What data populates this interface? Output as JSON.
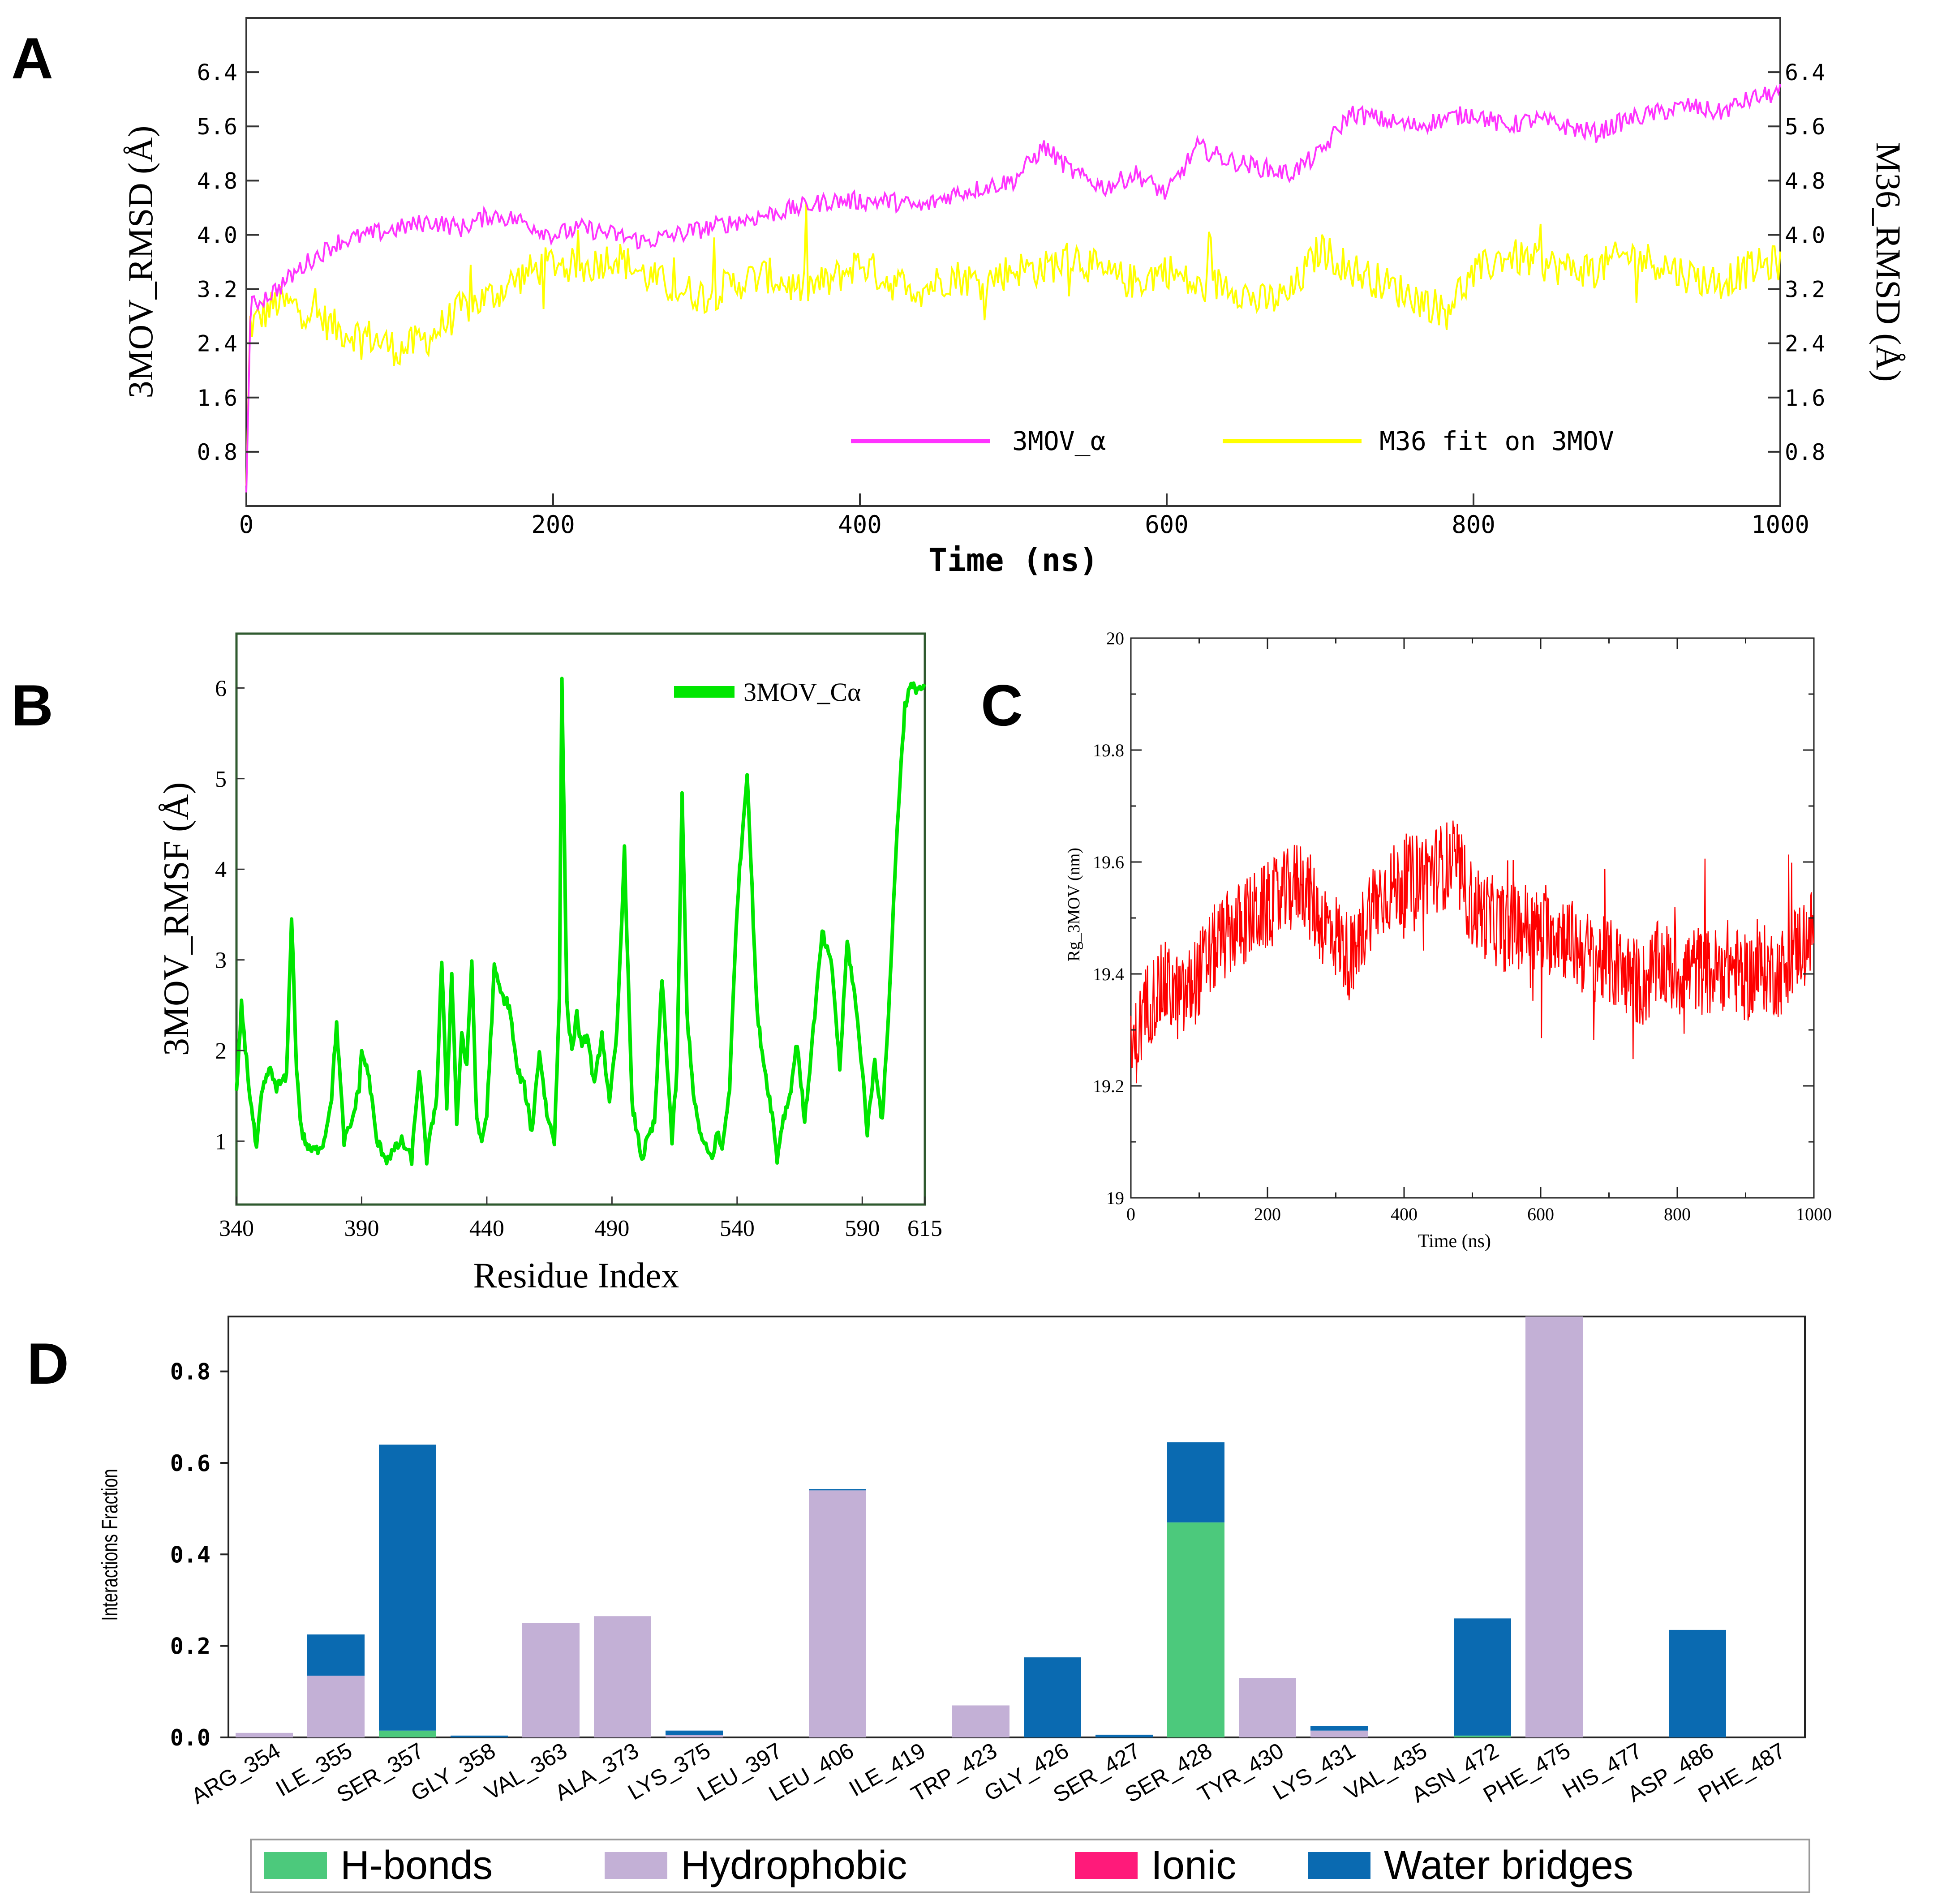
{
  "panels": {
    "a": {
      "letter": "A"
    },
    "b": {
      "letter": "B"
    },
    "c": {
      "letter": "C"
    },
    "d": {
      "letter": "D"
    }
  },
  "colors": {
    "magenta": "#ff33ff",
    "yellow": "#ffff00",
    "green": "#00e600",
    "red": "#ff0000",
    "hbond": "#4cc97c",
    "hydrophobic": "#c3b0d6",
    "ionic": "#ff1a7a",
    "water": "#0a6ab1"
  },
  "chart_data": [
    {
      "type": "line",
      "title": "",
      "xlabel": "Time (ns)",
      "ylabel": "3MOV_RMSD (Å)",
      "ylabel_right": "M36_RMSD (Å)",
      "xlim": [
        0,
        1000
      ],
      "ylim": [
        0,
        7.2
      ],
      "xticks": [
        "0",
        "200",
        "400",
        "600",
        "800",
        "1000"
      ],
      "yticks": [
        "0.8",
        "1.6",
        "2.4",
        "3.2",
        "4.0",
        "4.8",
        "5.6",
        "6.4"
      ],
      "legend": [
        "3MOV_α",
        "M36 fit on 3MOV"
      ],
      "legend_position": "bottom-right",
      "series": [
        {
          "name": "3MOV_α",
          "x": [
            0,
            20,
            40,
            60,
            80,
            100,
            120,
            140,
            160,
            180,
            200,
            220,
            240,
            260,
            280,
            300,
            320,
            340,
            360,
            380,
            400,
            420,
            440,
            460,
            480,
            500,
            520,
            540,
            560,
            580,
            600,
            620,
            640,
            660,
            680,
            700,
            720,
            740,
            760,
            780,
            800,
            820,
            840,
            860,
            880,
            900,
            920,
            940,
            960,
            980,
            1000
          ],
          "values": [
            2.9,
            3.2,
            3.6,
            3.9,
            4.0,
            4.1,
            4.2,
            4.1,
            4.3,
            4.2,
            4.0,
            4.1,
            4.0,
            3.9,
            4.0,
            4.1,
            4.2,
            4.3,
            4.4,
            4.5,
            4.5,
            4.5,
            4.4,
            4.6,
            4.7,
            4.8,
            5.3,
            4.9,
            4.7,
            4.9,
            4.6,
            5.3,
            5.1,
            5.0,
            4.9,
            5.2,
            5.8,
            5.7,
            5.6,
            5.7,
            5.8,
            5.6,
            5.7,
            5.6,
            5.5,
            5.7,
            5.8,
            5.9,
            5.8,
            6.0,
            6.1
          ]
        },
        {
          "name": "M36 fit on 3MOV",
          "x": [
            0,
            20,
            40,
            60,
            80,
            100,
            120,
            140,
            160,
            180,
            200,
            220,
            240,
            260,
            280,
            300,
            320,
            340,
            360,
            380,
            400,
            420,
            440,
            460,
            480,
            500,
            520,
            540,
            560,
            580,
            600,
            620,
            640,
            660,
            680,
            700,
            720,
            740,
            760,
            780,
            800,
            820,
            840,
            860,
            880,
            900,
            920,
            940,
            960,
            980,
            1000
          ],
          "values": [
            2.6,
            3.0,
            2.9,
            2.6,
            2.5,
            2.3,
            2.5,
            2.9,
            3.1,
            3.4,
            3.6,
            3.5,
            3.7,
            3.4,
            3.2,
            3.1,
            3.3,
            3.4,
            3.2,
            3.3,
            3.6,
            3.3,
            3.2,
            3.4,
            3.3,
            3.5,
            3.5,
            3.7,
            3.4,
            3.3,
            3.5,
            3.2,
            3.3,
            3.0,
            3.1,
            3.8,
            3.5,
            3.3,
            3.1,
            2.9,
            3.4,
            3.7,
            3.6,
            3.5,
            3.5,
            3.7,
            3.6,
            3.4,
            3.3,
            3.5,
            3.6
          ]
        }
      ]
    },
    {
      "type": "line",
      "title": "",
      "xlabel": "Residue Index",
      "ylabel": "3MOV_RMSF (Å)",
      "xlim": [
        340,
        615
      ],
      "ylim": [
        0.3,
        6.6
      ],
      "xticks": [
        "340",
        "390",
        "440",
        "490",
        "540",
        "590",
        "615"
      ],
      "yticks": [
        "1",
        "2",
        "3",
        "4",
        "5",
        "6"
      ],
      "legend": [
        "3MOV_Cα"
      ],
      "legend_position": "top-right",
      "series": [
        {
          "name": "3MOV_Cα",
          "x": [
            340,
            342,
            345,
            348,
            350,
            353,
            356,
            360,
            362,
            364,
            366,
            369,
            372,
            375,
            378,
            380,
            383,
            386,
            389,
            390,
            393,
            396,
            400,
            403,
            406,
            410,
            413,
            416,
            420,
            422,
            424,
            426,
            428,
            430,
            432,
            434,
            436,
            438,
            440,
            443,
            446,
            449,
            452,
            455,
            458,
            461,
            464,
            467,
            469,
            470,
            472,
            474,
            476,
            478,
            480,
            483,
            486,
            489,
            492,
            495,
            498,
            500,
            502,
            504,
            507,
            510,
            514,
            516,
            518,
            520,
            523,
            526,
            528,
            530,
            532,
            534,
            537,
            540,
            544,
            548,
            551,
            554,
            556,
            558,
            561,
            564,
            567,
            570,
            574,
            578,
            581,
            584,
            587,
            590,
            592,
            595,
            598,
            601,
            604,
            607,
            609,
            611,
            613,
            615
          ],
          "values": [
            1.5,
            2.5,
            1.6,
            0.9,
            1.5,
            1.8,
            1.6,
            1.7,
            3.5,
            1.8,
            1.1,
            0.9,
            0.9,
            1.0,
            1.5,
            2.3,
            1.0,
            1.2,
            1.6,
            2.0,
            1.7,
            1.0,
            0.8,
            0.9,
            1.0,
            0.8,
            1.8,
            0.8,
            1.5,
            3.0,
            1.4,
            2.9,
            1.2,
            2.2,
            1.8,
            3.0,
            1.2,
            1.0,
            1.3,
            2.9,
            2.6,
            2.5,
            1.8,
            1.6,
            1.1,
            2.0,
            1.3,
            1.0,
            2.6,
            6.1,
            2.5,
            2.0,
            2.4,
            2.0,
            2.2,
            1.6,
            2.2,
            1.4,
            2.2,
            4.2,
            1.4,
            1.1,
            0.8,
            1.0,
            1.2,
            2.8,
            1.0,
            1.8,
            4.8,
            2.4,
            1.4,
            1.0,
            0.9,
            0.8,
            1.1,
            0.9,
            1.6,
            3.6,
            5.1,
            2.4,
            1.8,
            1.3,
            0.8,
            1.2,
            1.5,
            2.1,
            1.2,
            2.1,
            3.3,
            2.9,
            1.8,
            3.2,
            2.6,
            1.8,
            1.1,
            1.9,
            1.2,
            2.7,
            4.5,
            5.8,
            6.0,
            6.0,
            6.0,
            6.0
          ]
        }
      ]
    },
    {
      "type": "line",
      "title": "",
      "xlabel": "Time (ns)",
      "ylabel": "Rg_3MOV (nm)",
      "xlim": [
        0,
        1000
      ],
      "ylim": [
        19,
        20
      ],
      "xticks": [
        "0",
        "200",
        "400",
        "600",
        "800",
        "1000"
      ],
      "yticks": [
        "19",
        "19.2",
        "19.4",
        "19.6",
        "19.8",
        "20"
      ],
      "series": [
        {
          "name": "Rg_3MOV",
          "x": [
            0,
            25,
            50,
            75,
            100,
            125,
            150,
            175,
            200,
            225,
            250,
            275,
            300,
            325,
            350,
            375,
            400,
            425,
            450,
            475,
            500,
            525,
            550,
            575,
            600,
            625,
            650,
            675,
            700,
            725,
            750,
            775,
            800,
            825,
            850,
            875,
            900,
            925,
            950,
            975,
            1000
          ],
          "values": [
            19.25,
            19.35,
            19.38,
            19.35,
            19.4,
            19.45,
            19.48,
            19.5,
            19.52,
            19.54,
            19.57,
            19.5,
            19.47,
            19.42,
            19.52,
            19.55,
            19.56,
            19.58,
            19.59,
            19.6,
            19.52,
            19.5,
            19.48,
            19.49,
            19.47,
            19.48,
            19.45,
            19.43,
            19.42,
            19.4,
            19.38,
            19.42,
            19.4,
            19.41,
            19.4,
            19.42,
            19.39,
            19.41,
            19.4,
            19.45,
            19.48
          ]
        }
      ]
    },
    {
      "type": "bar",
      "title": "",
      "xlabel": "",
      "ylabel": "Interactions Fraction",
      "ylim": [
        0,
        0.92
      ],
      "yticks": [
        "0.0",
        "0.2",
        "0.4",
        "0.6",
        "0.8"
      ],
      "categories": [
        "ARG_354",
        "ILE_355",
        "SER_357",
        "GLY_358",
        "VAL_363",
        "ALA_373",
        "LYS_375",
        "LEU_397",
        "LEU_406",
        "ILE_419",
        "TRP_423",
        "GLY_426",
        "SER_427",
        "SER_428",
        "TYR_430",
        "LYS_431",
        "VAL_435",
        "ASN_472",
        "PHE_475",
        "HIS_477",
        "ASP_486",
        "PHE_487"
      ],
      "legend": [
        "H-bonds",
        "Hydrophobic",
        "Ionic",
        "Water bridges"
      ],
      "legend_position": "bottom",
      "series": [
        {
          "name": "H-bonds",
          "values": [
            0,
            0,
            0.015,
            0,
            0,
            0,
            0,
            0,
            0,
            0,
            0,
            0,
            0,
            0.47,
            0,
            0,
            0,
            0.004,
            0,
            0,
            0,
            0
          ]
        },
        {
          "name": "Hydrophobic",
          "values": [
            0.01,
            0.135,
            0,
            0,
            0.25,
            0.265,
            0.005,
            0,
            0.54,
            0,
            0.07,
            0,
            0,
            0,
            0.13,
            0.015,
            0,
            0,
            0.92,
            0,
            0,
            0
          ]
        },
        {
          "name": "Ionic",
          "values": [
            0,
            0,
            0,
            0,
            0,
            0,
            0,
            0,
            0,
            0,
            0,
            0,
            0,
            0,
            0,
            0,
            0,
            0,
            0,
            0,
            0,
            0
          ]
        },
        {
          "name": "Water bridges",
          "values": [
            0,
            0.09,
            0.625,
            0.004,
            0,
            0,
            0.01,
            0,
            0.003,
            0,
            0,
            0.175,
            0.006,
            0.175,
            0,
            0.01,
            0,
            0.256,
            0,
            0,
            0.235,
            0
          ]
        }
      ]
    }
  ]
}
